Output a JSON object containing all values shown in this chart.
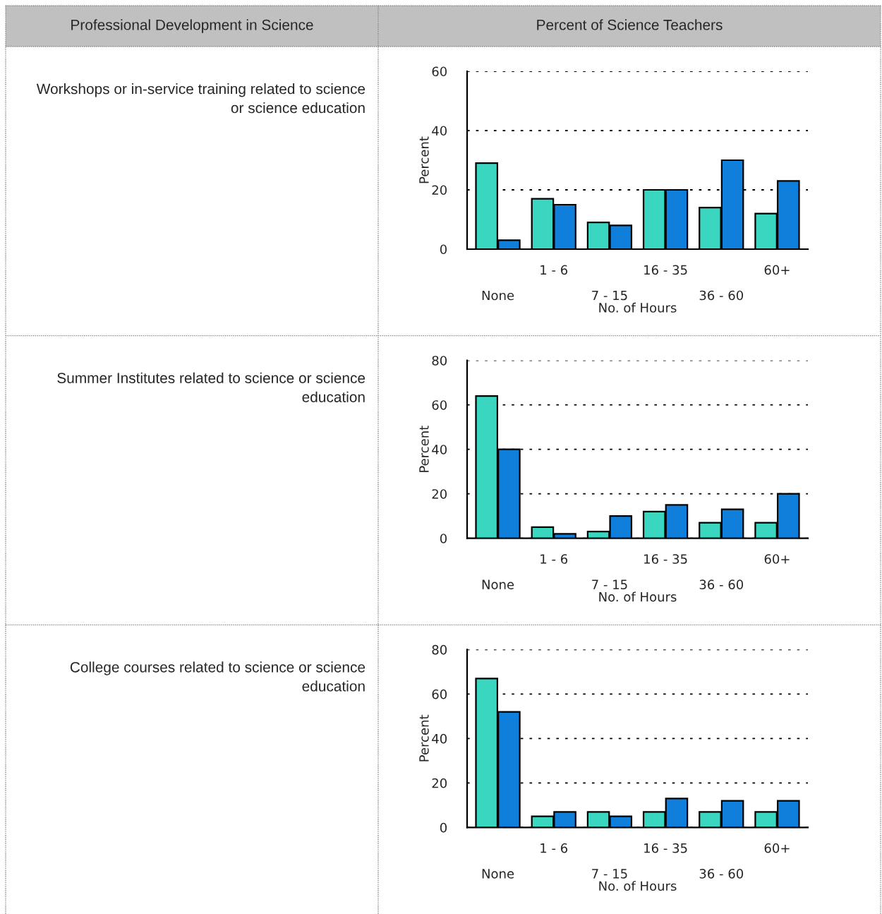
{
  "chart_data": [
    {
      "type": "bar",
      "title": "Workshops or in-service training related to science or science education",
      "annotations": [
        "Professional Development in Science",
        "Percent of Science Teachers"
      ],
      "xlabel": "No. of Hours",
      "ylabel": "Percent",
      "categories": [
        "None",
        "1 - 6",
        "7 - 15",
        "16 - 35",
        "36 - 60",
        "60+"
      ],
      "ylim": [
        0,
        60
      ],
      "yticks": [
        0,
        20,
        40,
        60
      ],
      "grid": "y",
      "series": [
        {
          "color": "#3bd6c0",
          "values": [
            29,
            17,
            9,
            20,
            14,
            12
          ]
        },
        {
          "color": "#0f7fdb",
          "values": [
            3,
            15,
            8,
            20,
            30,
            23
          ]
        }
      ]
    },
    {
      "type": "bar",
      "title": "Summer Institutes related to science or science education",
      "xlabel": "No. of Hours",
      "ylabel": "Percent",
      "categories": [
        "None",
        "1 - 6",
        "7 - 15",
        "16 - 35",
        "36 - 60",
        "60+"
      ],
      "ylim": [
        0,
        80
      ],
      "yticks": [
        0,
        20,
        40,
        60,
        80
      ],
      "grid": "y",
      "series": [
        {
          "color": "#3bd6c0",
          "values": [
            64,
            5,
            3,
            12,
            7,
            7
          ]
        },
        {
          "color": "#0f7fdb",
          "values": [
            40,
            2,
            10,
            15,
            13,
            20
          ]
        }
      ]
    },
    {
      "type": "bar",
      "title": "College courses related to science or science education",
      "xlabel": "No. of Hours",
      "ylabel": "Percent",
      "categories": [
        "None",
        "1 - 6",
        "7 - 15",
        "16 - 35",
        "36 - 60",
        "60+"
      ],
      "ylim": [
        0,
        80
      ],
      "yticks": [
        0,
        20,
        40,
        60,
        80
      ],
      "grid": "y",
      "series": [
        {
          "color": "#3bd6c0",
          "values": [
            67,
            5,
            7,
            7,
            7,
            7
          ]
        },
        {
          "color": "#0f7fdb",
          "values": [
            52,
            7,
            5,
            13,
            12,
            12
          ]
        }
      ]
    }
  ]
}
